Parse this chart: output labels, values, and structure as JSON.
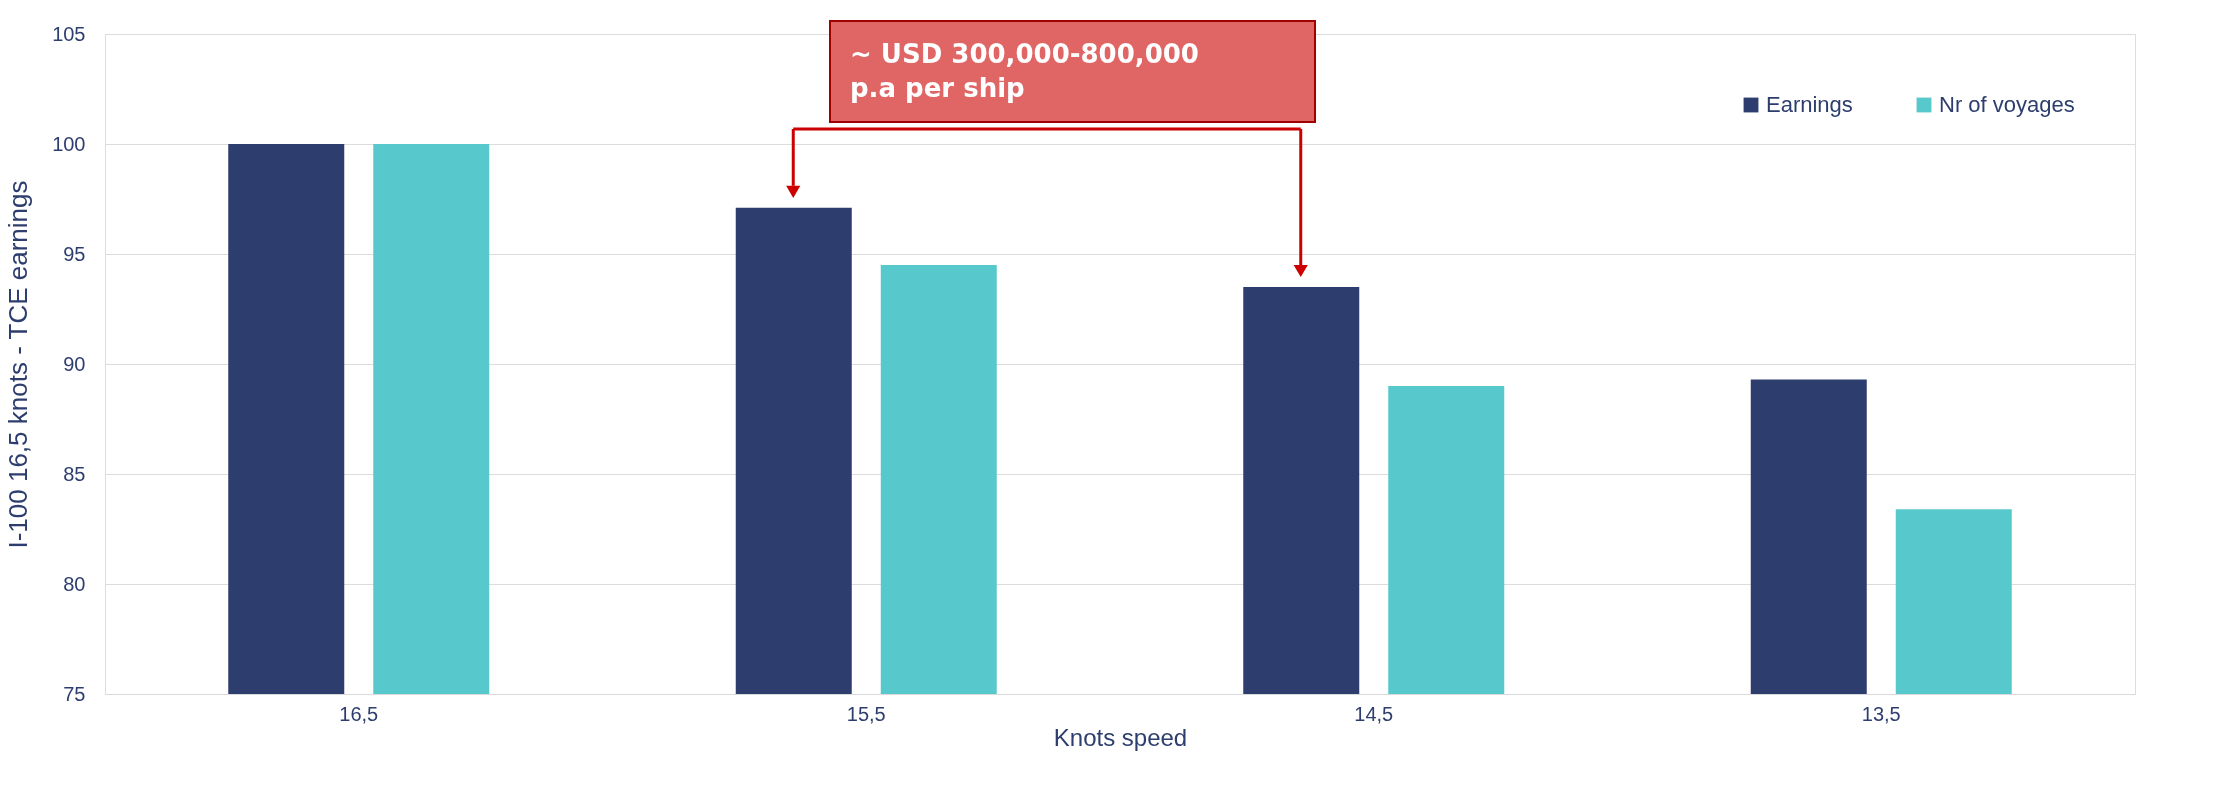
{
  "chart_data": {
    "type": "bar",
    "xlabel": "Knots speed",
    "ylabel": "I-100 16,5 knots - TCE earnings",
    "categories": [
      "16,5",
      "15,5",
      "14,5",
      "13,5"
    ],
    "series": [
      {
        "name": "Earnings",
        "color": "#2d3e6e",
        "values": [
          100,
          97.1,
          93.5,
          89.3
        ]
      },
      {
        "name": "Nr of voyages",
        "color": "#57c8cc",
        "values": [
          100,
          94.5,
          89.0,
          83.4
        ]
      }
    ],
    "ylim": [
      75,
      105
    ],
    "yticks": [
      75,
      80,
      85,
      90,
      95,
      100,
      105
    ],
    "grid": "y",
    "legend": "top right",
    "annotations": [
      "~ USD 300,000-800,000\np.a per ship"
    ]
  }
}
